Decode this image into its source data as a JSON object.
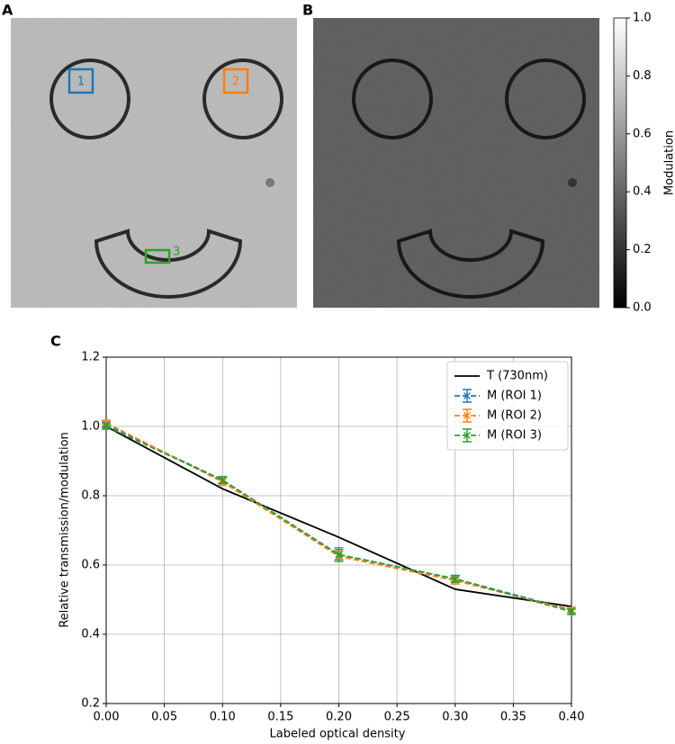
{
  "panel_labels": [
    "A",
    "B",
    "C"
  ],
  "roi_labels": [
    "1",
    "2",
    "3"
  ],
  "colorbar": {
    "label": "Modulation",
    "ticks": [
      {
        "value": 0,
        "label": "0.0"
      },
      0.2,
      0.4,
      0.6,
      0.8,
      {
        "value": 1,
        "label": "1.0"
      }
    ],
    "lim": [
      0,
      1
    ]
  },
  "chart_data": {
    "type": "line",
    "xlabel": "Labeled optical density",
    "ylabel": "Relative transmission/modulation",
    "x": [
      0,
      0.1,
      0.2,
      0.3,
      0.4
    ],
    "xlim": [
      0,
      0.4
    ],
    "ylim": [
      0.2,
      1.2
    ],
    "xticks": [
      {
        "value": 0,
        "label": "0.00"
      },
      0.05,
      {
        "value": 0.1,
        "label": "0.10"
      },
      0.15,
      {
        "value": 0.2,
        "label": "0.20"
      },
      0.25,
      {
        "value": 0.3,
        "label": "0.30"
      },
      0.35,
      {
        "value": 0.4,
        "label": "0.40"
      }
    ],
    "yticks": [
      0.2,
      0.4,
      0.6,
      0.8,
      {
        "value": 1,
        "label": "1.0"
      },
      1.2
    ],
    "grid": true,
    "legend": "upper right",
    "series": [
      {
        "name": "T (730nm)",
        "color": "#000000",
        "style": "solid",
        "values": [
          1.0,
          0.82,
          0.68,
          0.53,
          0.48
        ]
      },
      {
        "name": "M (ROI 1)",
        "color": "#1f77b4",
        "style": "dashed",
        "values": [
          1.005,
          0.845,
          0.63,
          0.56,
          0.47
        ],
        "errors": [
          0.008,
          0.01,
          0.015,
          0.01,
          0.008
        ]
      },
      {
        "name": "M (ROI 2)",
        "color": "#ff7f0e",
        "style": "dashed",
        "values": [
          1.01,
          0.84,
          0.625,
          0.555,
          0.47
        ],
        "errors": [
          0.008,
          0.01,
          0.015,
          0.01,
          0.008
        ]
      },
      {
        "name": "M (ROI 3)",
        "color": "#2ca02c",
        "style": "dashed",
        "values": [
          1.0,
          0.845,
          0.63,
          0.56,
          0.465
        ],
        "errors": [
          0.008,
          0.01,
          0.02,
          0.01,
          0.008
        ]
      }
    ]
  }
}
